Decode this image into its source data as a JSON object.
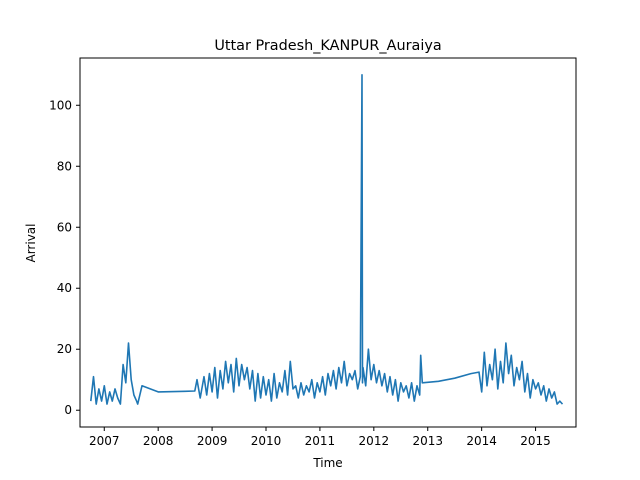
{
  "chart_data": {
    "type": "line",
    "title": "Uttar Pradesh_KANPUR_Auraiya",
    "xlabel": "Time",
    "ylabel": "Arrival",
    "xlim": [
      2006.55,
      2015.75
    ],
    "ylim": [
      -5.5,
      115.5
    ],
    "xticks": [
      2007,
      2008,
      2009,
      2010,
      2011,
      2012,
      2013,
      2014,
      2015
    ],
    "yticks": [
      0,
      20,
      40,
      60,
      80,
      100
    ],
    "grid": false,
    "line_color": "#1f77b4",
    "series": [
      {
        "name": "",
        "x": [
          2006.75,
          2006.8,
          2006.85,
          2006.9,
          2006.95,
          2007.0,
          2007.05,
          2007.1,
          2007.15,
          2007.2,
          2007.25,
          2007.3,
          2007.35,
          2007.4,
          2007.45,
          2007.5,
          2007.55,
          2007.6,
          2007.62,
          2007.7,
          2008.0,
          2008.5,
          2008.68,
          2008.72,
          2008.78,
          2008.85,
          2008.9,
          2008.95,
          2009.0,
          2009.05,
          2009.1,
          2009.15,
          2009.2,
          2009.25,
          2009.3,
          2009.35,
          2009.4,
          2009.45,
          2009.5,
          2009.55,
          2009.6,
          2009.65,
          2009.7,
          2009.75,
          2009.8,
          2009.85,
          2009.9,
          2009.95,
          2010.0,
          2010.05,
          2010.1,
          2010.15,
          2010.2,
          2010.25,
          2010.3,
          2010.35,
          2010.4,
          2010.45,
          2010.5,
          2010.55,
          2010.6,
          2010.65,
          2010.7,
          2010.75,
          2010.8,
          2010.85,
          2010.9,
          2010.95,
          2011.0,
          2011.05,
          2011.1,
          2011.15,
          2011.2,
          2011.25,
          2011.3,
          2011.35,
          2011.4,
          2011.45,
          2011.5,
          2011.55,
          2011.6,
          2011.65,
          2011.7,
          2011.75,
          2011.78,
          2011.79,
          2011.8,
          2011.85,
          2011.9,
          2011.95,
          2012.0,
          2012.05,
          2012.1,
          2012.15,
          2012.2,
          2012.25,
          2012.3,
          2012.35,
          2012.4,
          2012.45,
          2012.5,
          2012.55,
          2012.6,
          2012.65,
          2012.7,
          2012.75,
          2012.8,
          2012.85,
          2012.87,
          2012.9,
          2013.2,
          2013.5,
          2013.8,
          2013.95,
          2014.0,
          2014.05,
          2014.1,
          2014.15,
          2014.2,
          2014.25,
          2014.3,
          2014.35,
          2014.4,
          2014.45,
          2014.5,
          2014.55,
          2014.6,
          2014.65,
          2014.7,
          2014.75,
          2014.8,
          2014.85,
          2014.9,
          2014.95,
          2015.0,
          2015.05,
          2015.1,
          2015.15,
          2015.2,
          2015.25,
          2015.3,
          2015.35,
          2015.4,
          2015.45,
          2015.5
        ],
        "values": [
          3,
          11,
          2,
          7,
          3,
          8,
          2,
          6,
          3,
          7,
          4,
          2,
          15,
          9,
          22,
          10,
          5,
          3,
          2,
          8,
          6,
          6.2,
          6.3,
          10,
          4,
          11,
          5,
          12,
          6,
          14,
          4,
          13,
          7,
          16,
          9,
          15,
          6,
          17,
          8,
          15,
          10,
          14,
          7,
          13,
          3,
          12,
          4,
          11,
          5,
          10,
          3,
          12,
          4,
          9,
          6,
          13,
          5,
          16,
          7,
          8,
          4,
          9,
          5,
          8,
          6,
          10,
          4,
          9,
          6,
          11,
          5,
          12,
          8,
          13,
          7,
          14,
          9,
          16,
          8,
          12,
          10,
          13,
          7,
          11,
          110,
          9,
          14,
          8,
          20,
          10,
          15,
          9,
          13,
          8,
          12,
          6,
          11,
          5,
          10,
          3,
          9,
          6,
          8,
          4,
          9,
          3,
          8,
          5,
          18,
          9,
          9.5,
          10.5,
          12,
          12.5,
          6,
          19,
          8,
          15,
          10,
          20,
          7,
          16,
          9,
          22,
          12,
          18,
          8,
          14,
          10,
          16,
          6,
          12,
          4,
          10,
          7,
          9,
          5,
          8,
          3,
          7,
          4,
          6,
          2,
          3,
          2
        ]
      }
    ]
  }
}
